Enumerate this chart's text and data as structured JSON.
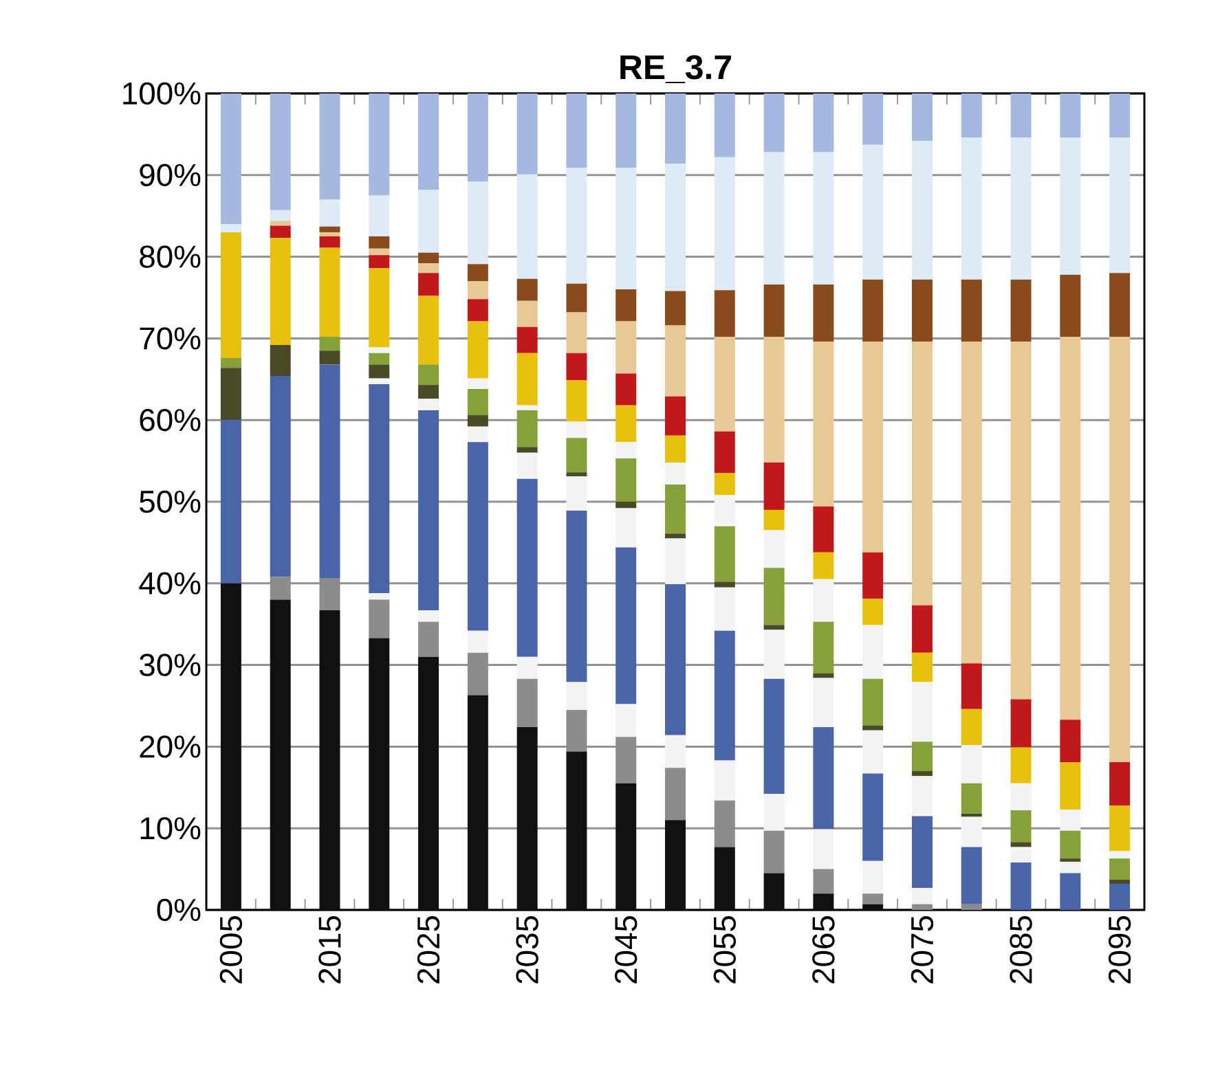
{
  "chart_data": {
    "type": "bar",
    "stacked": true,
    "title": "RE_3.7",
    "categories": [
      "2005",
      null,
      "2015",
      null,
      "2025",
      null,
      "2035",
      null,
      "2045",
      null,
      "2055",
      null,
      "2065",
      null,
      "2075",
      null,
      "2085",
      null,
      "2095"
    ],
    "ylim": [
      0,
      100
    ],
    "yticks": [
      {
        "value": 0,
        "label": "0%"
      },
      {
        "value": 10,
        "label": "10%"
      },
      {
        "value": 20,
        "label": "20%"
      },
      {
        "value": 30,
        "label": "30%"
      },
      {
        "value": 40,
        "label": "40%"
      },
      {
        "value": 50,
        "label": "50%"
      },
      {
        "value": 60,
        "label": "60%"
      },
      {
        "value": 70,
        "label": "70%"
      },
      {
        "value": 80,
        "label": "80%"
      },
      {
        "value": 90,
        "label": "90%"
      },
      {
        "value": 100,
        "label": "100%"
      }
    ],
    "grid": "y",
    "series": [
      {
        "color": "#111111",
        "values": [
          40,
          38,
          36.7,
          33.3,
          31,
          26.3,
          22.4,
          19.4,
          15.5,
          11,
          7.7,
          4.5,
          2,
          0.7,
          0,
          0,
          0,
          0,
          0
        ]
      },
      {
        "color": "#8c8c8c",
        "values": [
          0,
          2.8,
          3.9,
          4.7,
          4.3,
          5.2,
          5.9,
          5.1,
          5.7,
          6.4,
          5.7,
          5.2,
          3,
          1.3,
          0.7,
          0.7,
          0,
          0,
          0
        ]
      },
      {
        "color": "#f3f3f3",
        "values": [
          0,
          0,
          0,
          0.8,
          1.4,
          2.7,
          2.7,
          3.4,
          4,
          4,
          4.9,
          4.5,
          4.9,
          4,
          2,
          0,
          0,
          0,
          0
        ]
      },
      {
        "color": "#4a64a8",
        "values": [
          20,
          24.6,
          26.2,
          25.6,
          24.5,
          23.1,
          21.8,
          21,
          19.2,
          18.5,
          15.9,
          14.1,
          12.5,
          10.7,
          8.8,
          7,
          5.8,
          4.5,
          3.2
        ]
      },
      {
        "color": "#f3f3f3",
        "values": [
          0,
          0,
          0,
          0.7,
          1.4,
          1.9,
          3.2,
          4.2,
          4.8,
          5.6,
          5.3,
          6,
          6,
          5.3,
          4.9,
          3.7,
          1.9,
          1.4,
          0
        ]
      },
      {
        "color": "#4b4a26",
        "values": [
          6.4,
          3.8,
          1.7,
          1.7,
          1.7,
          1.4,
          0.7,
          0.5,
          0.8,
          0.6,
          0.7,
          0.6,
          0.6,
          0.6,
          0.6,
          0.4,
          0.6,
          0.4,
          0.5
        ]
      },
      {
        "color": "#86a03a",
        "values": [
          1.2,
          0,
          1.7,
          1.4,
          2.5,
          3.2,
          4.5,
          4.2,
          5.3,
          6,
          6.8,
          7,
          6.3,
          5.7,
          3.6,
          3.7,
          3.9,
          3.4,
          2.6
        ]
      },
      {
        "color": "#f3f3f3",
        "values": [
          0,
          0,
          0,
          0.7,
          0,
          1.3,
          0.6,
          2,
          2,
          2.7,
          3.8,
          4.6,
          5.2,
          6.6,
          7.3,
          4.7,
          3.3,
          2.6,
          0.9
        ]
      },
      {
        "color": "#e8c10f",
        "values": [
          15.4,
          13.1,
          10.9,
          9.7,
          8.4,
          7,
          6.4,
          5.1,
          4.5,
          3.3,
          2.7,
          2.5,
          3.3,
          3.2,
          3.6,
          4.4,
          4.4,
          5.8,
          5.6
        ]
      },
      {
        "color": "#c0181b",
        "values": [
          0,
          1.5,
          1.4,
          1.6,
          2.8,
          2.7,
          3.2,
          3.3,
          3.9,
          4.8,
          5.1,
          5.8,
          5.6,
          5.7,
          5.8,
          5.6,
          5.9,
          5.2,
          5.3
        ]
      },
      {
        "color": "#e9c898",
        "values": [
          0,
          0.6,
          0.5,
          0.8,
          1.2,
          2.2,
          3.2,
          5,
          6.4,
          8.7,
          11.6,
          15.4,
          20.2,
          25.8,
          32.3,
          39.4,
          43.8,
          46.9,
          52.1
        ]
      },
      {
        "color": "#8a4b1c",
        "values": [
          0,
          0,
          0.7,
          1.5,
          1.3,
          2.1,
          2.7,
          3.5,
          3.9,
          4.2,
          5.7,
          6.4,
          7,
          7.6,
          7.6,
          7.6,
          7.6,
          7.6,
          7.8
        ]
      },
      {
        "color": "#deebf7",
        "values": [
          1,
          1.3,
          3.3,
          5,
          7.7,
          10.1,
          12.8,
          14.2,
          14.9,
          15.6,
          16.3,
          16.2,
          16.2,
          16.5,
          17,
          17.4,
          17.4,
          16.8,
          16.6
        ]
      },
      {
        "color": "#a4b8e0",
        "values": [
          16,
          14.3,
          13,
          12.5,
          11.8,
          10.8,
          9.9,
          9.1,
          9.1,
          8.6,
          7.8,
          7.2,
          7.2,
          6.3,
          5.8,
          5.4,
          5.4,
          5.4,
          5.4
        ]
      }
    ]
  }
}
